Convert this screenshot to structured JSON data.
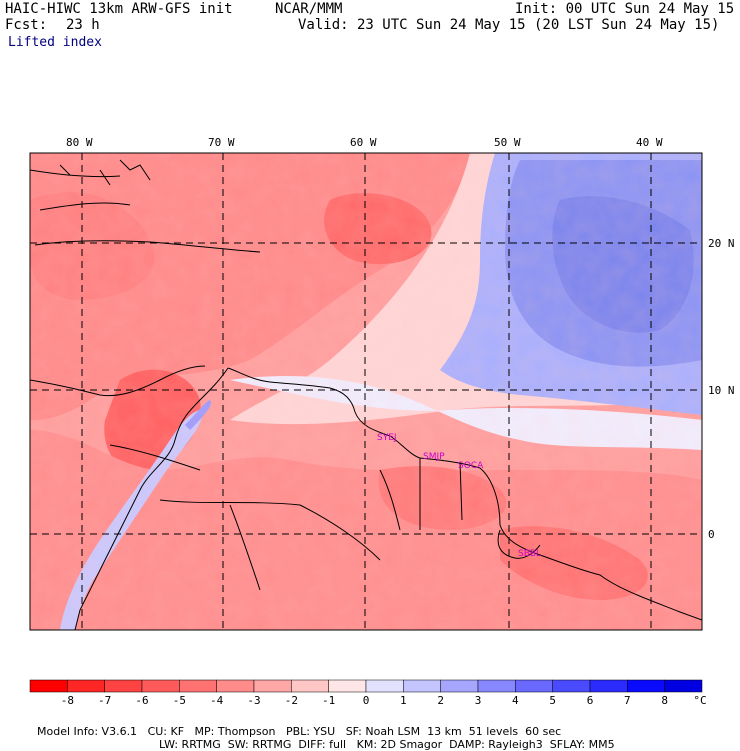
{
  "header": {
    "model": "HAIC-HIWC 13km ARW-GFS init",
    "org": "NCAR/MMM",
    "init": "Init: 00 UTC Sun 24 May 15",
    "fcst_label": "Fcst:",
    "fcst_value": "23 h",
    "valid": "Valid: 23 UTC Sun 24 May 15 (20 LST Sun 24 May 15)",
    "field": "Lifted index"
  },
  "map": {
    "lon_labels": [
      "80 W",
      "70 W",
      "60 W",
      "50 W",
      "40 W"
    ],
    "lat_labels": [
      "20 N",
      "10 N",
      "0"
    ],
    "stations": [
      "SYEJ",
      "SMJP",
      "SOCA",
      "SBBL"
    ]
  },
  "colorbar": {
    "ticks": [
      "-8",
      "-7",
      "-6",
      "-5",
      "-4",
      "-3",
      "-2",
      "-1",
      "0",
      "1",
      "2",
      "3",
      "4",
      "5",
      "6",
      "7",
      "8"
    ],
    "unit": "°C",
    "colors": [
      "#ff0000",
      "#ff2626",
      "#ff4343",
      "#ff5a5a",
      "#ff7272",
      "#ff8b8b",
      "#ffa6a6",
      "#ffc6c6",
      "#ffe6e6",
      "#e2e2ff",
      "#c4c4ff",
      "#a6a6ff",
      "#8787ff",
      "#6969ff",
      "#4a4aff",
      "#2b2bff",
      "#0a0aff",
      "#0000e0"
    ]
  },
  "info": {
    "line1": [
      "Model Info: V3.6.1",
      "CU: KF",
      "MP: Thompson",
      "PBL: YSU",
      "SF: Noah LSM",
      "13 km",
      "51 levels",
      "60 sec"
    ],
    "line2": [
      "LW: RRTMG",
      "SW: RRTMG",
      "DIFF: full",
      "KM: 2D Smagor",
      "DAMP: Rayleigh3",
      "SFLAY: MM5"
    ]
  }
}
